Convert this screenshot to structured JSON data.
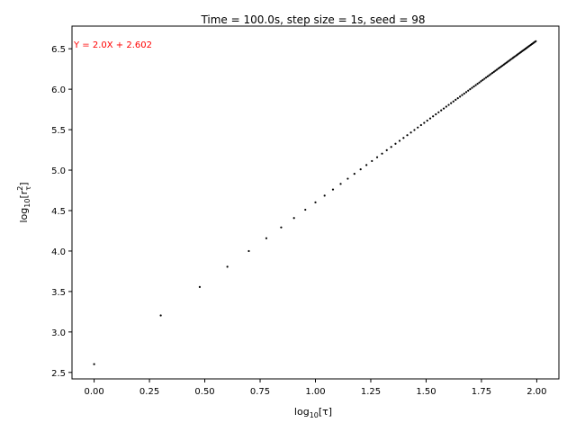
{
  "chart_data": {
    "type": "scatter",
    "title": "Time = 100.0s, step size = 1s, seed = 98",
    "xlabel_parts": {
      "pre": "log",
      "sub": "10",
      "post": "[τ]"
    },
    "ylabel_parts": {
      "pre": "log",
      "sub": "10",
      "mid": "[r",
      "sup": "2",
      "sub2": "τ",
      "post": "]"
    },
    "annotation": "Y = 2.0X + 2.602",
    "annotation_color": "#ff0000",
    "marker_color": "#000000",
    "xlim": [
      -0.1,
      2.1
    ],
    "ylim": [
      2.42,
      6.78
    ],
    "x_ticks": [
      {
        "value": 0.0,
        "label": "0.00"
      },
      {
        "value": 0.25,
        "label": "0.25"
      },
      {
        "value": 0.5,
        "label": "0.50"
      },
      {
        "value": 0.75,
        "label": "0.75"
      },
      {
        "value": 1.0,
        "label": "1.00"
      },
      {
        "value": 1.25,
        "label": "1.25"
      },
      {
        "value": 1.5,
        "label": "1.50"
      },
      {
        "value": 1.75,
        "label": "1.75"
      },
      {
        "value": 2.0,
        "label": "2.00"
      }
    ],
    "y_ticks": [
      {
        "value": 2.5,
        "label": "2.5"
      },
      {
        "value": 3.0,
        "label": "3.0"
      },
      {
        "value": 3.5,
        "label": "3.5"
      },
      {
        "value": 4.0,
        "label": "4.0"
      },
      {
        "value": 4.5,
        "label": "4.5"
      },
      {
        "value": 5.0,
        "label": "5.0"
      },
      {
        "value": 5.5,
        "label": "5.5"
      },
      {
        "value": 6.0,
        "label": "6.0"
      },
      {
        "value": 6.5,
        "label": "6.5"
      }
    ],
    "grid": false,
    "tau_values": [
      1,
      2,
      3,
      4,
      5,
      6,
      7,
      8,
      9,
      10,
      11,
      12,
      13,
      14,
      15,
      16,
      17,
      18,
      19,
      20,
      21,
      22,
      23,
      24,
      25,
      26,
      27,
      28,
      29,
      30,
      31,
      32,
      33,
      34,
      35,
      36,
      37,
      38,
      39,
      40,
      41,
      42,
      43,
      44,
      45,
      46,
      47,
      48,
      49,
      50,
      51,
      52,
      53,
      54,
      55,
      56,
      57,
      58,
      59,
      60,
      61,
      62,
      63,
      64,
      65,
      66,
      67,
      68,
      69,
      70,
      71,
      72,
      73,
      74,
      75,
      76,
      77,
      78,
      79,
      80,
      81,
      82,
      83,
      84,
      85,
      86,
      87,
      88,
      89,
      90,
      91,
      92,
      93,
      94,
      95,
      96,
      97,
      98,
      99
    ],
    "slope": 2.0,
    "intercept": 2.602
  }
}
